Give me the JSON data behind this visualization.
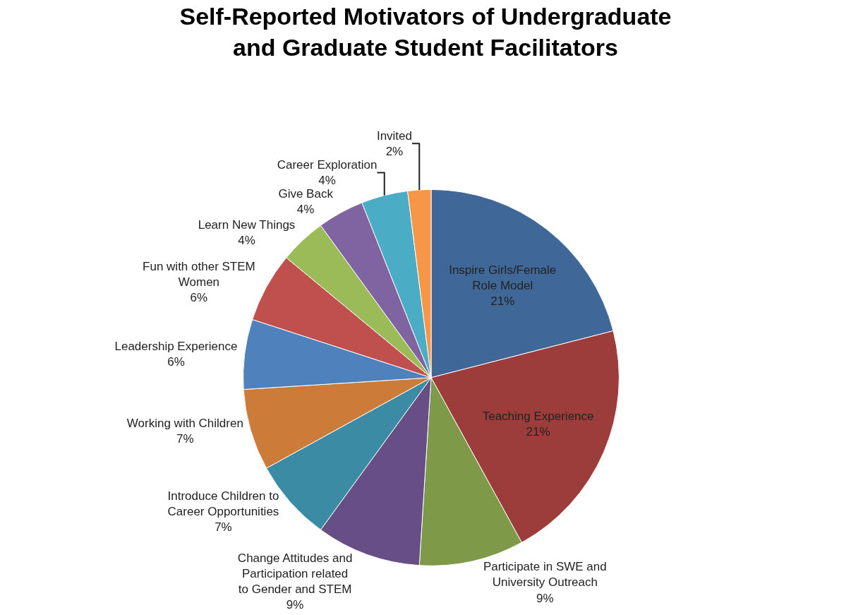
{
  "chart_data": {
    "type": "pie",
    "title": "Self-Reported Motivators of Undergraduate and Graduate Student Facilitators",
    "categories": [
      "Inspire Girls/Female Role Model",
      "Teaching Experience",
      "Participate in SWE and University Outreach",
      "Change Attitudes and Participation related to Gender and STEM",
      "Introduce Children to Career Opportunities",
      "Working with Children",
      "Leadership Experience",
      "Fun with other STEM Women",
      "Learn New Things",
      "Give Back",
      "Career Exploration",
      "Invited"
    ],
    "values": [
      21,
      21,
      9,
      9,
      7,
      7,
      6,
      6,
      4,
      4,
      4,
      2
    ],
    "value_labels": [
      "21%",
      "21%",
      "9%",
      "9%",
      "7%",
      "7%",
      "6%",
      "6%",
      "4%",
      "4%",
      "4%",
      "2%"
    ],
    "colors": [
      "#3f6797",
      "#9c3d3b",
      "#7e9a48",
      "#684e87",
      "#3a8ba3",
      "#cc7b38",
      "#4f81bd",
      "#c0504d",
      "#9bbb59",
      "#8064a2",
      "#4bacc6",
      "#f79646"
    ],
    "legend": false
  }
}
